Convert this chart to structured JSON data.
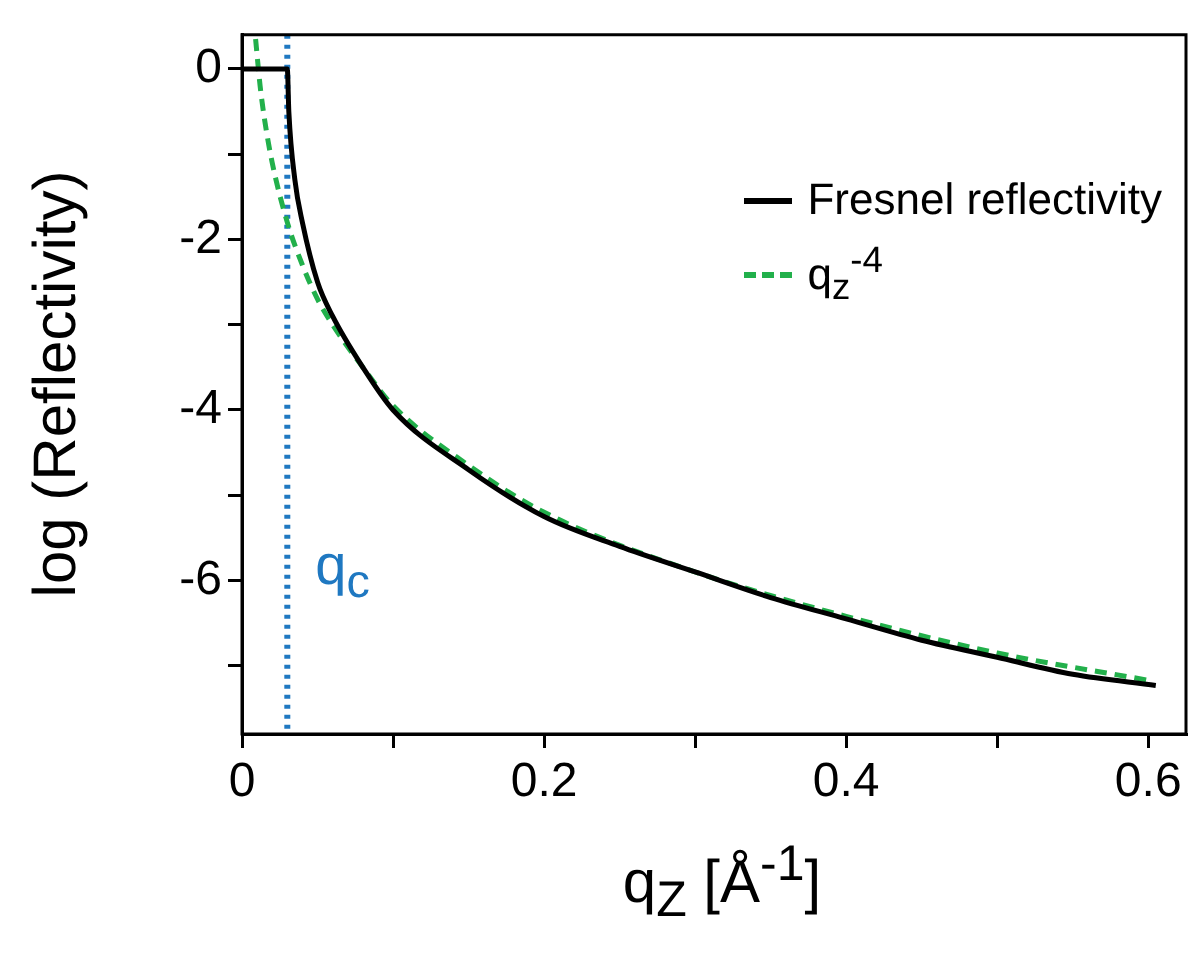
{
  "chart_data": {
    "type": "line",
    "xlabel": "q$_{Z}$ [Å$^{-1}$]",
    "ylabel": "log (Reflectivity)",
    "xlim": [
      0,
      0.625
    ],
    "xticks": [
      0,
      {
        "value": 0.1,
        "label": null
      },
      0.2,
      {
        "value": 0.3,
        "label": null
      },
      0.4,
      {
        "value": 0.5,
        "label": null
      },
      0.6
    ],
    "ylim": [
      -7.8,
      0.4
    ],
    "yticks": [
      {
        "value": -7,
        "label": null
      },
      -6,
      {
        "value": -5,
        "label": null
      },
      -4,
      {
        "value": -3,
        "label": null
      },
      -2,
      {
        "value": -1,
        "label": null
      },
      0
    ],
    "grid": false,
    "legend": "top right",
    "marker": "none",
    "series": [
      {
        "name": "Fresnel reflectivity",
        "color": "#000000",
        "line_style": "solid",
        "x": [
          0,
          0.03,
          0.031,
          0.035,
          0.04,
          0.05,
          0.06,
          0.08,
          0.1,
          0.15,
          0.2,
          0.25,
          0.3,
          0.35,
          0.4,
          0.45,
          0.5,
          0.55,
          0.605
        ],
        "values": [
          0,
          0,
          -0.5,
          -1.3,
          -1.8,
          -2.5,
          -2.9,
          -3.5,
          -4.0,
          -4.7,
          -5.25,
          -5.6,
          -5.9,
          -6.2,
          -6.45,
          -6.7,
          -6.9,
          -7.1,
          -7.23
        ]
      },
      {
        "name": "q$_{z}$$^{-4}$",
        "color": "#22b04b",
        "line_style": "dashed",
        "x": [
          0.009,
          0.012,
          0.015,
          0.02,
          0.03,
          0.04,
          0.05,
          0.06,
          0.08,
          0.1,
          0.15,
          0.2,
          0.3,
          0.4,
          0.5,
          0.6
        ],
        "values": [
          0.35,
          -0.2,
          -0.6,
          -1.1,
          -1.8,
          -2.3,
          -2.7,
          -3.0,
          -3.5,
          -3.95,
          -4.65,
          -5.2,
          -5.9,
          -6.42,
          -6.85,
          -7.17
        ]
      }
    ],
    "ref_lines": [
      {
        "axis": "x",
        "value": 0.03,
        "label": "q$_{c}$",
        "color": "#1f78c1",
        "line_style": "dotted"
      }
    ]
  }
}
